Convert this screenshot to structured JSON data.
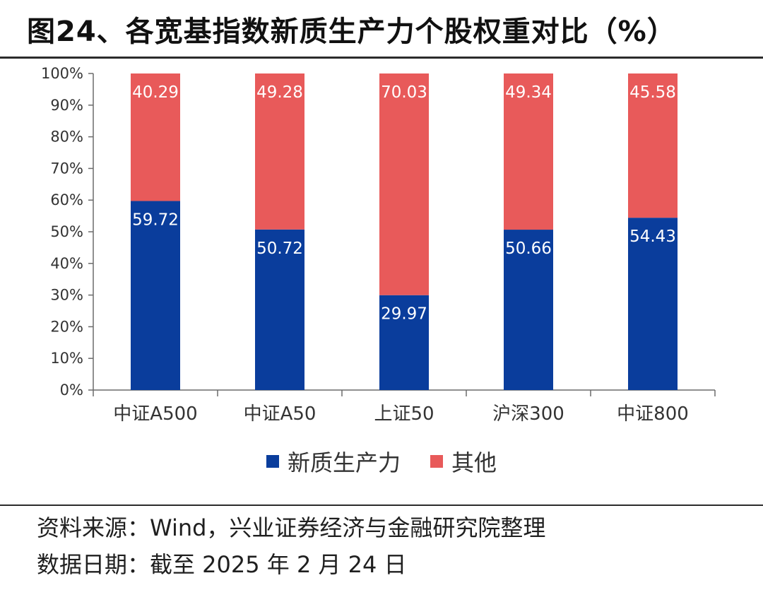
{
  "title": "图24、各宽基指数新质生产力个股权重对比（%）",
  "footer": {
    "source": "资料来源：Wind，兴业证券经济与金融研究院整理",
    "date": "数据日期：截至 2025 年 2 月 24 日"
  },
  "colors": {
    "new_productivity": "#0a3d9c",
    "other": "#e85a5a",
    "axis": "#6b6b6b",
    "value_label": "#ffffff"
  },
  "chart_data": {
    "type": "bar",
    "stacked": true,
    "title": "各宽基指数新质生产力个股权重对比（%）",
    "categories": [
      "中证A500",
      "中证A50",
      "上证50",
      "沪深300",
      "中证800"
    ],
    "series": [
      {
        "name": "新质生产力",
        "values": [
          59.72,
          50.72,
          29.97,
          50.66,
          54.43
        ],
        "labels": [
          "59.72",
          "50.72",
          "29.97",
          "50.66",
          "54.43"
        ]
      },
      {
        "name": "其他",
        "values": [
          40.29,
          49.28,
          70.03,
          49.34,
          45.58
        ],
        "labels": [
          "40.29",
          "49.28",
          "70.03",
          "49.34",
          "45.58"
        ]
      }
    ],
    "ylim": [
      0,
      100
    ],
    "yticks": [
      "0%",
      "10%",
      "20%",
      "30%",
      "40%",
      "50%",
      "60%",
      "70%",
      "80%",
      "90%",
      "100%"
    ],
    "xlabel": "",
    "ylabel": "",
    "grid": false,
    "legend_position": "bottom"
  }
}
